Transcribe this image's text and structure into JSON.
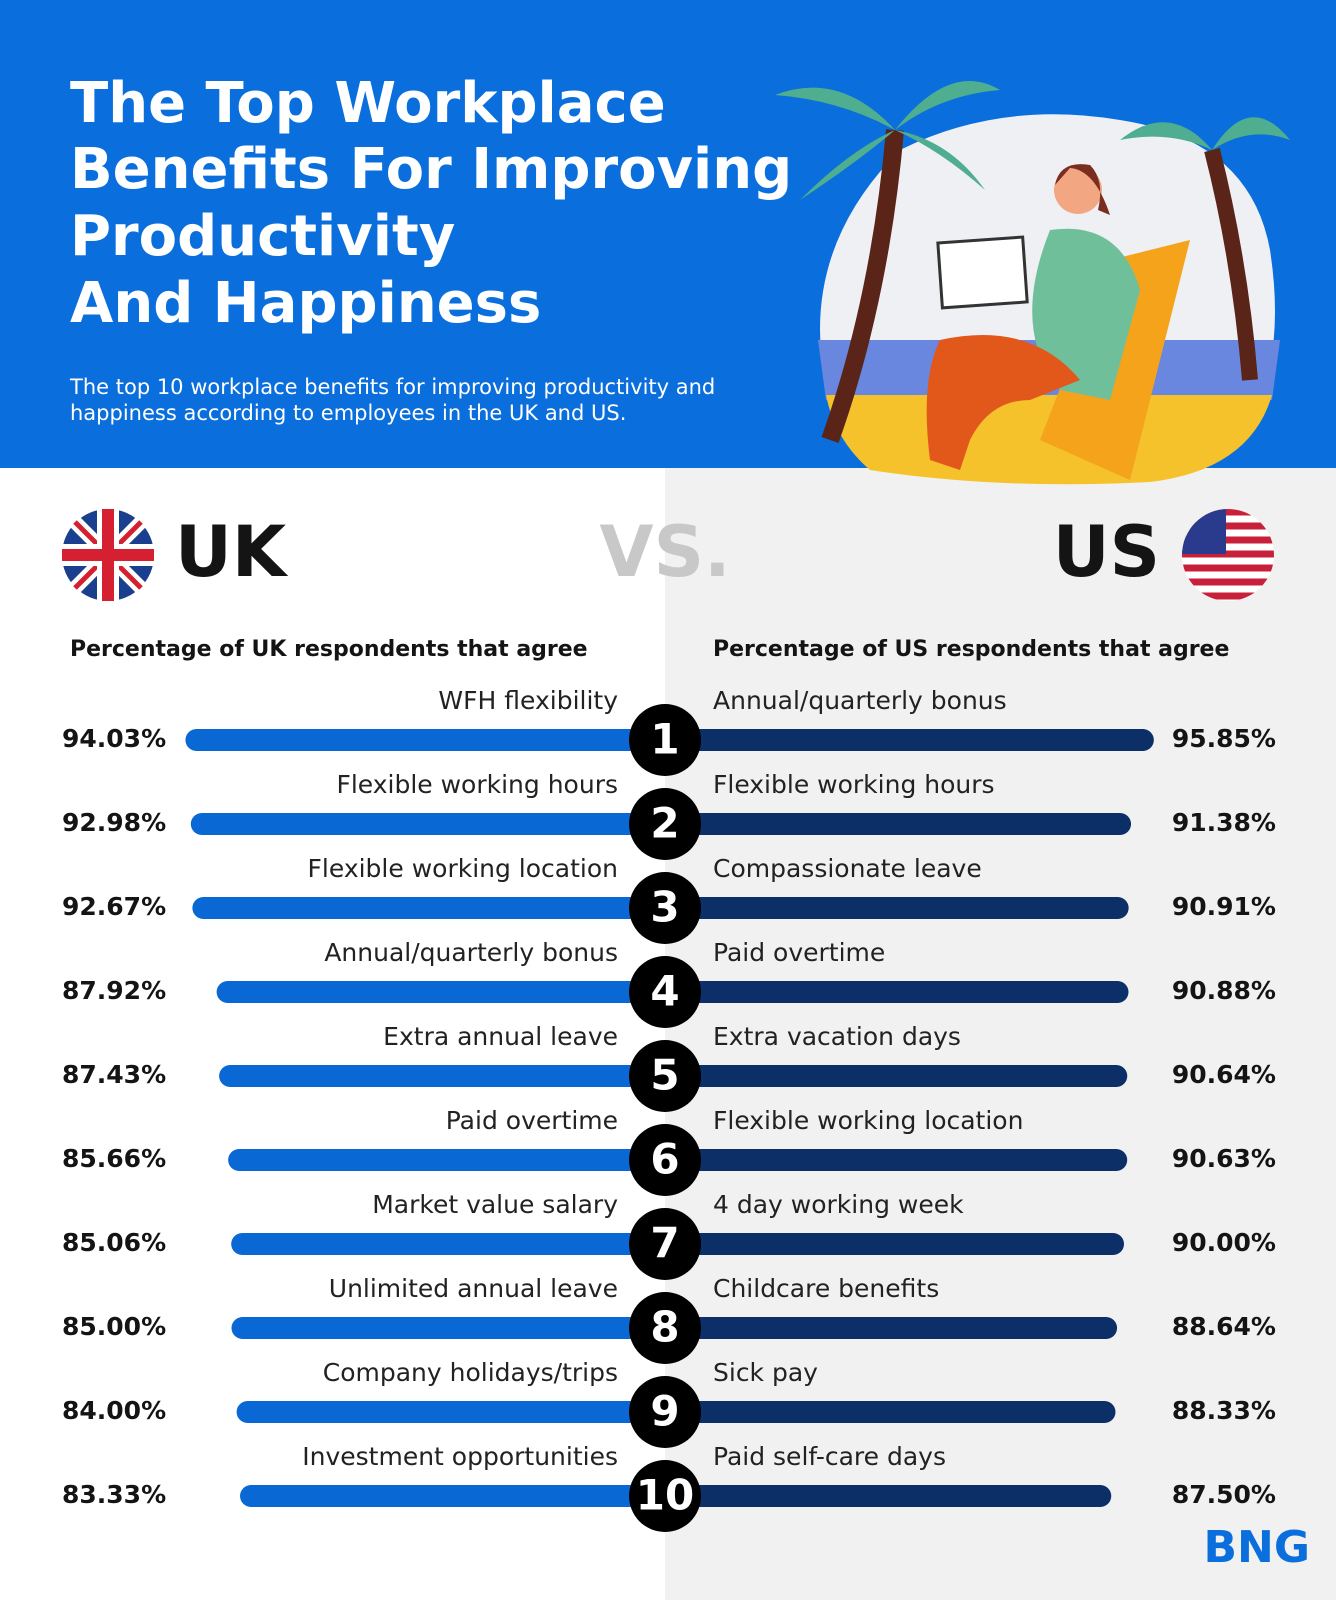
{
  "header": {
    "title": [
      "The Top Workplace",
      "Benefits For Improving",
      "Productivity",
      "And Happiness"
    ],
    "subtitle": "The top 10 workplace benefits for improving productivity and happiness according to employees in the UK and US."
  },
  "chart_data": {
    "type": "butterfly",
    "left_country": "UK",
    "separator": "VS.",
    "right_country": "US",
    "ranks": [
      "1",
      "2",
      "3",
      "4",
      "5",
      "6",
      "7",
      "8",
      "9",
      "10"
    ],
    "series": [
      {
        "name": "Percentage of UK respondents that agree",
        "color": "#0a68d4",
        "categories": [
          "WFH flexibility",
          "Flexible working hours",
          "Flexible working location",
          "Annual/quarterly bonus",
          "Extra annual leave",
          "Paid overtime",
          "Market value salary",
          "Unlimited annual leave",
          "Company holidays/trips",
          "Investment opportunities"
        ],
        "values": [
          94.03,
          92.98,
          92.67,
          87.92,
          87.43,
          85.66,
          85.06,
          85.0,
          84.0,
          83.33
        ],
        "value_labels": [
          "94.03%",
          "92.98%",
          "92.67%",
          "87.92%",
          "87.43%",
          "85.66%",
          "85.06%",
          "85.00%",
          "84.00%",
          "83.33%"
        ]
      },
      {
        "name": "Percentage of US respondents that agree",
        "color": "#0b2f66",
        "categories": [
          "Annual/quarterly bonus",
          "Flexible working hours",
          "Compassionate leave",
          "Paid overtime",
          "Extra vacation days",
          "Flexible working location",
          "4 day working week",
          "Childcare benefits",
          "Sick pay",
          "Paid self-care days"
        ],
        "values": [
          95.85,
          91.38,
          90.91,
          90.88,
          90.64,
          90.63,
          90.0,
          88.64,
          88.33,
          87.5
        ],
        "value_labels": [
          "95.85%",
          "91.38%",
          "90.91%",
          "90.88%",
          "90.64%",
          "90.63%",
          "90.00%",
          "88.64%",
          "88.33%",
          "87.50%"
        ]
      }
    ]
  },
  "logo": "BNG"
}
